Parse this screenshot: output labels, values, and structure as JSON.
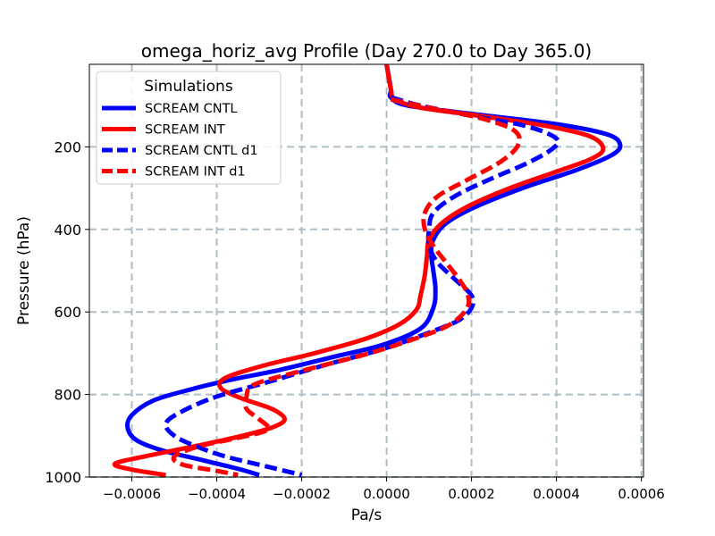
{
  "chart_data": {
    "type": "line",
    "title": "omega_horiz_avg Profile (Day 270.0 to Day 365.0)",
    "xlabel": "Pa/s",
    "ylabel": "Pressure (hPa)",
    "xlim": [
      -0.0007,
      0.000605
    ],
    "ylim": [
      1000,
      0
    ],
    "y_inverted": true,
    "grid": true,
    "x_ticks": [
      -0.0006,
      -0.0004,
      -0.0002,
      0.0,
      0.0002,
      0.0004,
      0.0006
    ],
    "x_tick_labels": [
      "−0.0006",
      "−0.0004",
      "−0.0002",
      "0.0000",
      "0.0002",
      "0.0004",
      "0.0006"
    ],
    "y_ticks": [
      200,
      400,
      600,
      800,
      1000
    ],
    "y_tick_labels": [
      "200",
      "400",
      "600",
      "800",
      "1000"
    ],
    "legend": {
      "title": "Simulations",
      "position": "upper-left",
      "entries": [
        "SCREAM CNTL",
        "SCREAM INT",
        "SCREAM CNTL d1",
        "SCREAM INT d1"
      ]
    },
    "series": [
      {
        "name": "SCREAM CNTL",
        "color": "#0000ff",
        "dash": "solid",
        "points": [
          [
            0.0,
            0
          ],
          [
            1e-05,
            60
          ],
          [
            1e-05,
            80
          ],
          [
            5e-05,
            100
          ],
          [
            0.0002,
            120
          ],
          [
            0.0004,
            145
          ],
          [
            0.00052,
            170
          ],
          [
            0.00055,
            195
          ],
          [
            0.00053,
            220
          ],
          [
            0.00045,
            255
          ],
          [
            0.00032,
            300
          ],
          [
            0.00021,
            345
          ],
          [
            0.00014,
            385
          ],
          [
            0.00011,
            425
          ],
          [
            0.000105,
            460
          ],
          [
            0.00011,
            500
          ],
          [
            0.000115,
            545
          ],
          [
            0.00011,
            590
          ],
          [
            8e-05,
            640
          ],
          [
            -1e-05,
            680
          ],
          [
            -0.00013,
            710
          ],
          [
            -0.00025,
            740
          ],
          [
            -0.00037,
            765
          ],
          [
            -0.00047,
            790
          ],
          [
            -0.00055,
            815
          ],
          [
            -0.0006,
            850
          ],
          [
            -0.00061,
            880
          ],
          [
            -0.00059,
            910
          ],
          [
            -0.00053,
            935
          ],
          [
            -0.00043,
            960
          ],
          [
            -0.00035,
            980
          ],
          [
            -0.0003,
            995
          ]
        ]
      },
      {
        "name": "SCREAM INT",
        "color": "#ff0000",
        "dash": "solid",
        "points": [
          [
            0.0,
            0
          ],
          [
            1e-05,
            60
          ],
          [
            2e-05,
            85
          ],
          [
            8e-05,
            105
          ],
          [
            0.00022,
            125
          ],
          [
            0.00038,
            150
          ],
          [
            0.00048,
            175
          ],
          [
            0.00051,
            205
          ],
          [
            0.00048,
            230
          ],
          [
            0.0004,
            260
          ],
          [
            0.00029,
            300
          ],
          [
            0.00019,
            345
          ],
          [
            0.00013,
            385
          ],
          [
            0.0001,
            425
          ],
          [
            9.5e-05,
            465
          ],
          [
            9e-05,
            510
          ],
          [
            8e-05,
            560
          ],
          [
            7e-05,
            595
          ],
          [
            3e-05,
            630
          ],
          [
            -5e-05,
            665
          ],
          [
            -0.00017,
            700
          ],
          [
            -0.00029,
            730
          ],
          [
            -0.00038,
            760
          ],
          [
            -0.00039,
            785
          ],
          [
            -0.00034,
            810
          ],
          [
            -0.00027,
            835
          ],
          [
            -0.00024,
            860
          ],
          [
            -0.00027,
            880
          ],
          [
            -0.00034,
            900
          ],
          [
            -0.00045,
            925
          ],
          [
            -0.00057,
            950
          ],
          [
            -0.00064,
            968
          ],
          [
            -0.0006,
            982
          ],
          [
            -0.00052,
            995
          ]
        ]
      },
      {
        "name": "SCREAM CNTL d1",
        "color": "#0000ff",
        "dash": "dashed",
        "points": [
          [
            1e-05,
            80
          ],
          [
            8e-05,
            100
          ],
          [
            0.0002,
            125
          ],
          [
            0.00033,
            150
          ],
          [
            0.0004,
            180
          ],
          [
            0.00039,
            205
          ],
          [
            0.00033,
            240
          ],
          [
            0.00024,
            280
          ],
          [
            0.00016,
            320
          ],
          [
            0.00011,
            360
          ],
          [
            0.0001,
            400
          ],
          [
            0.0001,
            440
          ],
          [
            0.00012,
            480
          ],
          [
            0.00016,
            520
          ],
          [
            0.0002,
            560
          ],
          [
            0.0002,
            590
          ],
          [
            0.00017,
            620
          ],
          [
            0.0001,
            650
          ],
          [
            -1e-05,
            690
          ],
          [
            -0.00015,
            730
          ],
          [
            -0.00028,
            770
          ],
          [
            -0.0004,
            805
          ],
          [
            -0.00048,
            840
          ],
          [
            -0.00052,
            870
          ],
          [
            -0.0005,
            900
          ],
          [
            -0.00045,
            925
          ],
          [
            -0.00038,
            950
          ],
          [
            -0.00028,
            975
          ],
          [
            -0.0002,
            995
          ]
        ]
      },
      {
        "name": "SCREAM INT d1",
        "color": "#ff0000",
        "dash": "dashed",
        "points": [
          [
            1e-05,
            85
          ],
          [
            0.0001,
            105
          ],
          [
            0.00022,
            130
          ],
          [
            0.0003,
            160
          ],
          [
            0.00031,
            195
          ],
          [
            0.00027,
            235
          ],
          [
            0.00019,
            280
          ],
          [
            0.00012,
            320
          ],
          [
            9e-05,
            360
          ],
          [
            9e-05,
            400
          ],
          [
            0.00011,
            440
          ],
          [
            0.00014,
            480
          ],
          [
            0.00017,
            520
          ],
          [
            0.00019,
            555
          ],
          [
            0.00019,
            590
          ],
          [
            0.00015,
            630
          ],
          [
            8e-05,
            660
          ],
          [
            -4e-05,
            700
          ],
          [
            -0.00019,
            740
          ],
          [
            -0.00031,
            775
          ],
          [
            -0.00033,
            805
          ],
          [
            -0.00033,
            835
          ],
          [
            -0.0003,
            860
          ],
          [
            -0.00028,
            885
          ],
          [
            -0.00035,
            905
          ],
          [
            -0.00044,
            925
          ],
          [
            -0.0005,
            950
          ],
          [
            -0.00048,
            970
          ],
          [
            -0.0004,
            985
          ],
          [
            -0.00035,
            995
          ]
        ]
      }
    ]
  }
}
